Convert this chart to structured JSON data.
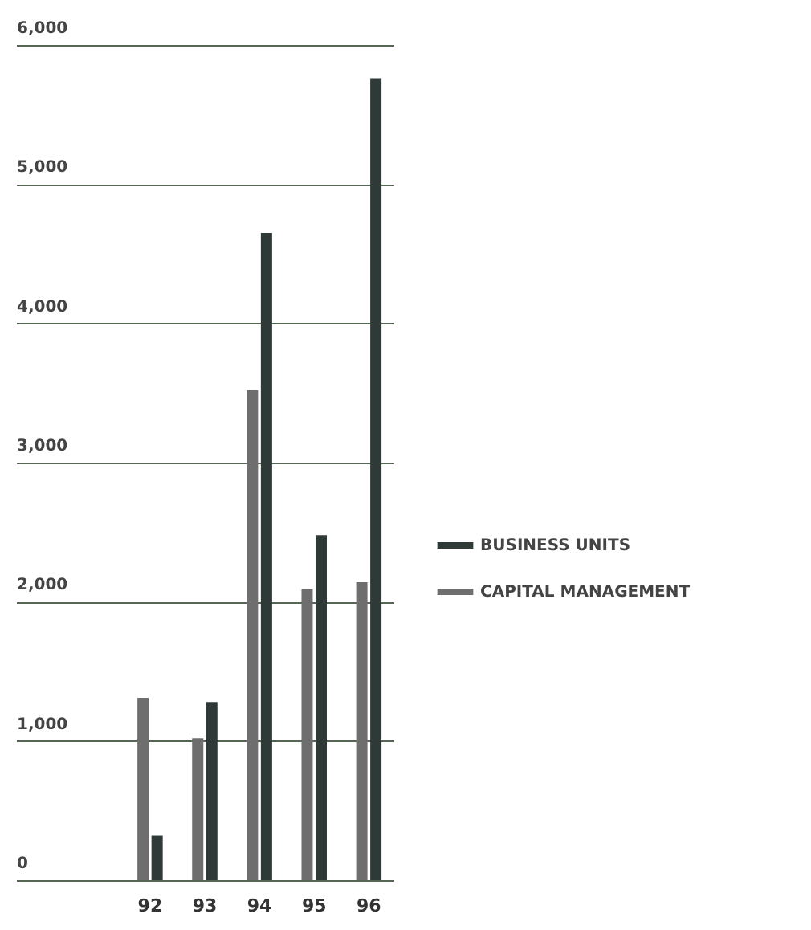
{
  "chart_data": {
    "type": "bar",
    "categories": [
      "92",
      "93",
      "94",
      "95",
      "96"
    ],
    "series": [
      {
        "name": "BUSINESS UNITS",
        "color": "#2f3a38",
        "values": [
          320,
          1280,
          4650,
          2480,
          5760
        ]
      },
      {
        "name": "CAPITAL MANAGEMENT",
        "color": "#6e6e6e",
        "values": [
          1310,
          1020,
          3520,
          2090,
          2140
        ]
      }
    ],
    "ylim": [
      0,
      6000
    ],
    "yticks": [
      {
        "value": 0,
        "label": "0"
      },
      {
        "value": 1000,
        "label": "1,000"
      },
      {
        "value": 2000,
        "label": "2,000"
      },
      {
        "value": 3000,
        "label": "3,000"
      },
      {
        "value": 4000,
        "label": "4,000"
      },
      {
        "value": 5000,
        "label": "5,000"
      },
      {
        "value": 6000,
        "label": "6,000"
      }
    ],
    "grid": "y",
    "legend": "right"
  }
}
